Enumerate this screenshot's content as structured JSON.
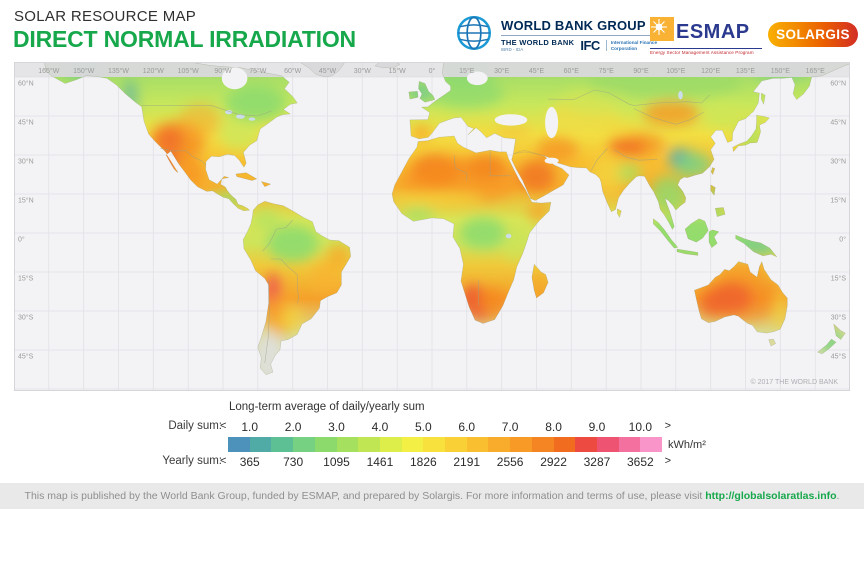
{
  "header": {
    "kicker": "SOLAR RESOURCE MAP",
    "title": "DIRECT NORMAL IRRADIATION",
    "title_color": "#17a84b",
    "logos": {
      "world_bank": {
        "name": "WORLD BANK GROUP",
        "sub1": "THE WORLD BANK",
        "sub1b": "IBRD - IDA",
        "sub2": "IFC",
        "sub2b": "International Finance Corporation"
      },
      "esmap": {
        "name": "ESMAP",
        "sub": "Energy Sector Management Assistance Program"
      },
      "solargis": {
        "name": "SOLARGIS"
      }
    }
  },
  "map": {
    "copyright": "© 2017 THE WORLD BANK",
    "lon_labels": [
      "165°W",
      "150°W",
      "135°W",
      "120°W",
      "105°W",
      "90°W",
      "75°W",
      "60°W",
      "45°W",
      "30°W",
      "15°W",
      "0°",
      "15°E",
      "30°E",
      "45°E",
      "60°E",
      "75°E",
      "90°E",
      "105°E",
      "120°E",
      "135°E",
      "150°E",
      "165°E"
    ],
    "lat_labels": [
      "60°N",
      "45°N",
      "30°N",
      "15°N",
      "0°",
      "15°S",
      "30°S",
      "45°S"
    ],
    "ocean_color": "#f3f3f5",
    "nodata_color": "#d8d8db"
  },
  "legend": {
    "title": "Long-term average of daily/yearly sum",
    "daily_label": "Daily sum:",
    "yearly_label": "Yearly sum:",
    "unit": "kWh/m²",
    "less_than": "<",
    "greater_than": ">",
    "daily_values": [
      "1.0",
      "2.0",
      "3.0",
      "4.0",
      "5.0",
      "6.0",
      "7.0",
      "8.0",
      "9.0",
      "10.0"
    ],
    "yearly_values": [
      "365",
      "730",
      "1095",
      "1461",
      "1826",
      "2191",
      "2556",
      "2922",
      "3287",
      "3652"
    ],
    "palette": [
      "#4d92bb",
      "#50aaa6",
      "#5cc094",
      "#76d183",
      "#8cd96c",
      "#a5e05f",
      "#c0e654",
      "#ddee4b",
      "#f4ef44",
      "#f8e13d",
      "#f9d137",
      "#fabf31",
      "#f9ac2b",
      "#f89a26",
      "#f58522",
      "#f26c1f",
      "#ed4a41",
      "#ee5372",
      "#f3709f",
      "#f995c8"
    ]
  },
  "footer": {
    "text": "This map is published by the World Bank Group, funded by ESMAP, and prepared by Solargis. For more information and terms of use, please visit ",
    "link": "http://globalsolaratlas.info",
    "suffix": "."
  }
}
